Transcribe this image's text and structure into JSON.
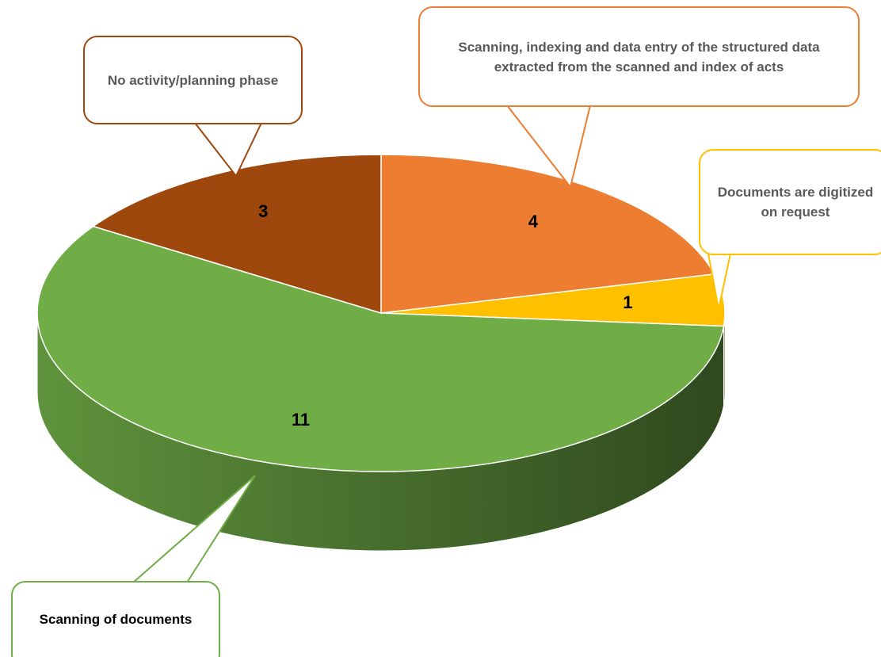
{
  "chart_data": {
    "type": "pie",
    "categories": [
      "Scanning, indexing  and data entry of the structured data extracted from the scanned and index of acts",
      "Documents are digitized on request",
      "Scanning of documents",
      "No activity/planning phase"
    ],
    "values": [
      4,
      1,
      11,
      3
    ],
    "colors": [
      "#ED7D31",
      "#FFC000",
      "#70AD47",
      "#9E480E"
    ]
  }
}
